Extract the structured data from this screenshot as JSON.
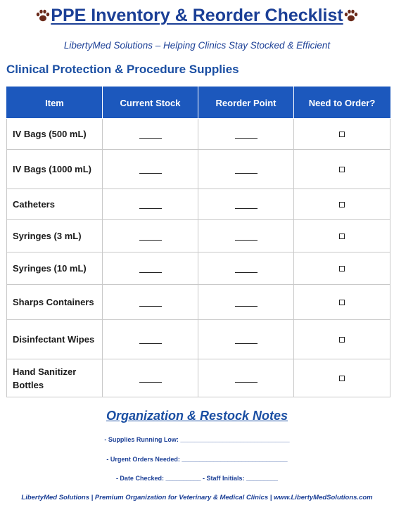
{
  "header": {
    "title": "PPE Inventory & Reorder Checklist",
    "subtitle": "LibertyMed Solutions – Helping Clinics Stay Stocked & Efficient",
    "icon": "paw-print-icon",
    "icon_color": "#6b2a1a"
  },
  "section": {
    "heading": "Clinical Protection & Procedure Supplies"
  },
  "table": {
    "columns": [
      "Item",
      "Current Stock",
      "Reorder Point",
      "Need to Order?"
    ],
    "header_color": "#1c58bd",
    "rows": [
      {
        "item": "IV Bags (500 mL)",
        "current_stock": "____",
        "reorder_point": "____",
        "need_to_order": "□"
      },
      {
        "item": "IV Bags (1000 mL)",
        "current_stock": "____",
        "reorder_point": "____",
        "need_to_order": "□"
      },
      {
        "item": "Catheters",
        "current_stock": "____",
        "reorder_point": "____",
        "need_to_order": "□"
      },
      {
        "item": "Syringes (3 mL)",
        "current_stock": "____",
        "reorder_point": "____",
        "need_to_order": "□"
      },
      {
        "item": "Syringes (10 mL)",
        "current_stock": "____",
        "reorder_point": "____",
        "need_to_order": "□"
      },
      {
        "item": "Sharps Containers",
        "current_stock": "____",
        "reorder_point": "____",
        "need_to_order": "□"
      },
      {
        "item": "Disinfectant Wipes",
        "current_stock": "____",
        "reorder_point": "____",
        "need_to_order": "□"
      },
      {
        "item": "Hand Sanitizer Bottles",
        "current_stock": "____",
        "reorder_point": "____",
        "need_to_order": "□"
      }
    ]
  },
  "notes": {
    "heading": "Organization & Restock Notes",
    "supplies_low": "- Supplies Running Low: _______________________________",
    "urgent_orders": "- Urgent Orders Needed: ______________________________",
    "date_staff": "- Date Checked: __________ - Staff Initials: _________"
  },
  "footer": {
    "text": "LibertyMed Solutions | Premium Organization for Veterinary & Medical Clinics | www.LibertyMedSolutions.com"
  }
}
